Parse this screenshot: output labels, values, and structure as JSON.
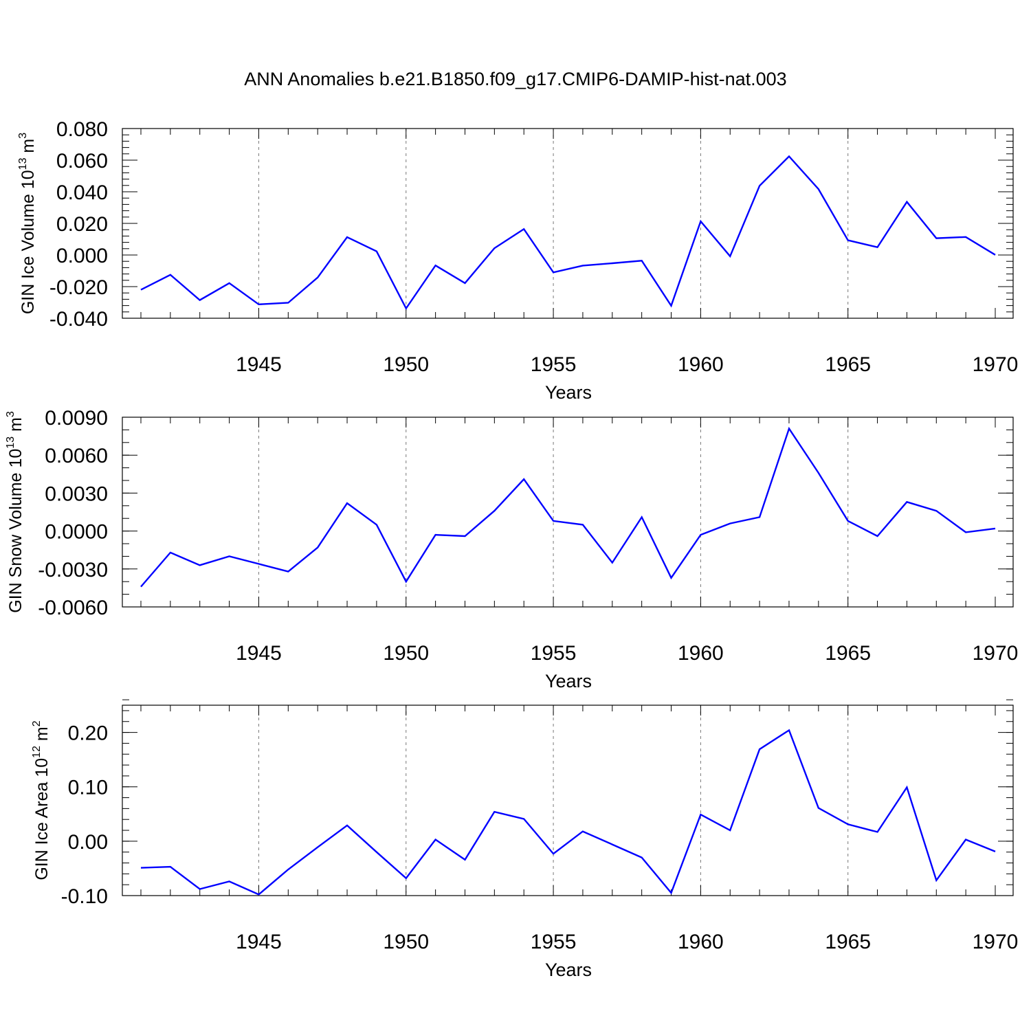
{
  "title": "ANN Anomalies b.e21.B1850.f09_g17.CMIP6-DAMIP-hist-nat.003",
  "colors": {
    "series": "#0000ff",
    "axis": "#000000",
    "grid": "#777777",
    "background": "#ffffff"
  },
  "chart_data": [
    {
      "type": "line",
      "ylabel": {
        "text": "GIN Ice Volume 10",
        "sup1": "13",
        "mid": " m",
        "sup2": "3"
      },
      "xlabel": "Years",
      "xlim": [
        1941,
        1970
      ],
      "ylim": [
        -0.04,
        0.08
      ],
      "yticks": [
        -0.04,
        -0.02,
        0.0,
        0.02,
        0.04,
        0.06,
        0.08
      ],
      "ytick_labels": [
        "-0.040",
        "-0.020",
        "0.000",
        "0.020",
        "0.040",
        "0.060",
        "0.080"
      ],
      "yminor": 0.004,
      "xticks": [
        1945,
        1950,
        1955,
        1960,
        1965,
        1970
      ],
      "xtick_labels": [
        "1945",
        "1950",
        "1955",
        "1960",
        "1965",
        "1970"
      ],
      "grid": "dashed vertical at major x ticks",
      "x": [
        1941,
        1942,
        1943,
        1944,
        1945,
        1946,
        1947,
        1948,
        1949,
        1950,
        1951,
        1952,
        1953,
        1954,
        1955,
        1956,
        1957,
        1958,
        1959,
        1960,
        1961,
        1962,
        1963,
        1964,
        1965,
        1966,
        1967,
        1968,
        1969,
        1970
      ],
      "y": [
        -0.022,
        -0.0125,
        -0.0285,
        -0.0178,
        -0.0312,
        -0.0302,
        -0.0142,
        0.0113,
        0.0023,
        -0.0338,
        -0.0066,
        -0.0178,
        0.0043,
        0.0164,
        -0.011,
        -0.0067,
        -0.0052,
        -0.0036,
        -0.0321,
        0.0213,
        -0.0008,
        0.0438,
        0.0624,
        0.0417,
        0.0093,
        0.0049,
        0.0336,
        0.0106,
        0.0114,
        0.0001
      ]
    },
    {
      "type": "line",
      "ylabel": {
        "text": "GIN Snow Volume 10",
        "sup1": "13",
        "mid": " m",
        "sup2": "3"
      },
      "xlabel": "Years",
      "xlim": [
        1941,
        1970
      ],
      "ylim": [
        -0.006,
        0.009
      ],
      "yticks": [
        -0.006,
        -0.003,
        0.0,
        0.003,
        0.006,
        0.009
      ],
      "ytick_labels": [
        "-0.0060",
        "-0.0030",
        "0.0000",
        "0.0030",
        "0.0060",
        "0.0090"
      ],
      "yminor": 0.001,
      "xticks": [
        1945,
        1950,
        1955,
        1960,
        1965,
        1970
      ],
      "xtick_labels": [
        "1945",
        "1950",
        "1955",
        "1960",
        "1965",
        "1970"
      ],
      "grid": "dashed vertical at major x ticks",
      "x": [
        1941,
        1942,
        1943,
        1944,
        1945,
        1946,
        1947,
        1948,
        1949,
        1950,
        1951,
        1952,
        1953,
        1954,
        1955,
        1956,
        1957,
        1958,
        1959,
        1960,
        1961,
        1962,
        1963,
        1964,
        1965,
        1966,
        1967,
        1968,
        1969,
        1970
      ],
      "y": [
        -0.0044,
        -0.0017,
        -0.0027,
        -0.002,
        -0.0026,
        -0.0032,
        -0.0013,
        0.0022,
        0.0005,
        -0.004,
        -0.0003,
        -0.0004,
        0.0016,
        0.0041,
        0.0008,
        0.0005,
        -0.0025,
        0.0011,
        -0.0037,
        -0.0003,
        0.0006,
        0.0011,
        0.0081,
        0.0046,
        0.0008,
        -0.0004,
        0.0023,
        0.0016,
        -0.0001,
        0.0002
      ]
    },
    {
      "type": "line",
      "ylabel": {
        "text": "GIN Ice Area 10",
        "sup1": "12",
        "mid": " m",
        "sup2": "2"
      },
      "xlabel": "Years",
      "xlim": [
        1941,
        1970
      ],
      "ylim": [
        -0.1,
        0.25
      ],
      "yticks": [
        -0.1,
        0.0,
        0.1,
        0.2
      ],
      "ytick_labels": [
        "-0.10",
        "0.00",
        "0.10",
        "0.20"
      ],
      "yminor": 0.02,
      "xticks": [
        1945,
        1950,
        1955,
        1960,
        1965,
        1970
      ],
      "xtick_labels": [
        "1945",
        "1950",
        "1955",
        "1960",
        "1965",
        "1970"
      ],
      "grid": "dashed vertical at major x ticks",
      "x": [
        1941,
        1942,
        1943,
        1944,
        1945,
        1946,
        1947,
        1948,
        1949,
        1950,
        1951,
        1952,
        1953,
        1954,
        1955,
        1956,
        1957,
        1958,
        1959,
        1960,
        1961,
        1962,
        1963,
        1964,
        1965,
        1966,
        1967,
        1968,
        1969,
        1970
      ],
      "y": [
        -0.049,
        -0.047,
        -0.088,
        -0.074,
        -0.098,
        -0.052,
        -0.011,
        0.029,
        -0.02,
        -0.068,
        0.003,
        -0.034,
        0.054,
        0.041,
        -0.023,
        0.018,
        -0.006,
        -0.03,
        -0.095,
        0.049,
        0.02,
        0.169,
        0.204,
        0.061,
        0.031,
        0.017,
        0.099,
        -0.072,
        0.003,
        -0.019
      ]
    }
  ]
}
